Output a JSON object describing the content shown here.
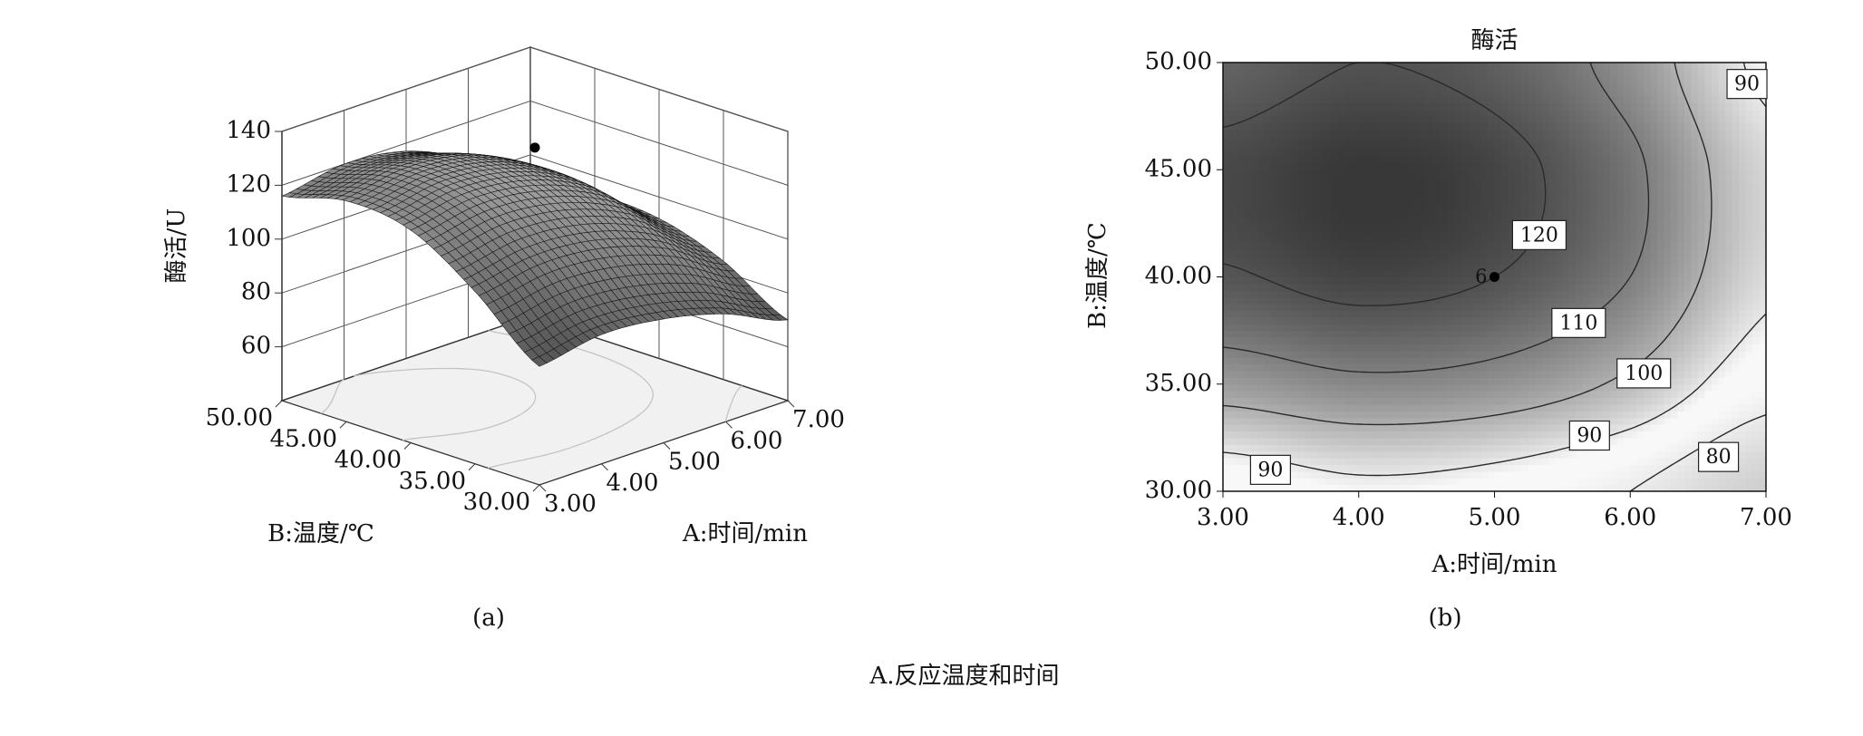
{
  "chart_data": [
    {
      "type": "surface",
      "z_label": "酶活/U",
      "x_label": "A:时间/min",
      "y_label": "B:温度/℃",
      "caption": "(a)",
      "xlim": [
        3,
        7
      ],
      "ylim": [
        30,
        50
      ],
      "zlim": [
        40,
        140
      ],
      "xticks": [
        {
          "value": 3,
          "label": "3.00"
        },
        {
          "value": 4,
          "label": "4.00"
        },
        {
          "value": 5,
          "label": "5.00"
        },
        {
          "value": 6,
          "label": "6.00"
        },
        {
          "value": 7,
          "label": "7.00"
        }
      ],
      "yticks": [
        {
          "value": 30,
          "label": "30.00"
        },
        {
          "value": 35,
          "label": "35.00"
        },
        {
          "value": 40,
          "label": "40.00"
        },
        {
          "value": 45,
          "label": "45.00"
        },
        {
          "value": 50,
          "label": "50.00"
        }
      ],
      "zticks": [
        60,
        80,
        100,
        120,
        140
      ],
      "grid_x": [
        3,
        4,
        5,
        6,
        7
      ],
      "grid_y": [
        30,
        35,
        40,
        45,
        50
      ],
      "z": [
        [
          84,
          88,
          86,
          80,
          70
        ],
        [
          104,
          108,
          106,
          98,
          84
        ],
        [
          119,
          123,
          120,
          110,
          92
        ],
        [
          122,
          126,
          123,
          112,
          93
        ],
        [
          116,
          120,
          117,
          106,
          88
        ]
      ],
      "points": [
        {
          "x": 5,
          "y": 40,
          "z": 134
        }
      ]
    },
    {
      "type": "contour",
      "title": "酶活",
      "x_label": "A:时间/min",
      "y_label": "B:温度/℃",
      "caption": "(b)",
      "xlim": [
        3,
        7
      ],
      "ylim": [
        30,
        50
      ],
      "xticks": [
        {
          "value": 3,
          "label": "3.00"
        },
        {
          "value": 4,
          "label": "4.00"
        },
        {
          "value": 5,
          "label": "5.00"
        },
        {
          "value": 6,
          "label": "6.00"
        },
        {
          "value": 7,
          "label": "7.00"
        }
      ],
      "yticks": [
        {
          "value": 30,
          "label": "30.00"
        },
        {
          "value": 35,
          "label": "35.00"
        },
        {
          "value": 40,
          "label": "40.00"
        },
        {
          "value": 45,
          "label": "45.00"
        },
        {
          "value": 50,
          "label": "50.00"
        }
      ],
      "grid_x": [
        3,
        4,
        5,
        6,
        7
      ],
      "grid_y": [
        30,
        35,
        40,
        45,
        50
      ],
      "z": [
        [
          84,
          88,
          86,
          80,
          70
        ],
        [
          104,
          108,
          106,
          98,
          84
        ],
        [
          119,
          123,
          120,
          110,
          92
        ],
        [
          122,
          126,
          123,
          112,
          93
        ],
        [
          116,
          120,
          117,
          106,
          88
        ]
      ],
      "levels": [
        80,
        90,
        100,
        110,
        120
      ],
      "contour_labels": [
        90,
        120,
        110,
        100,
        90,
        80,
        90
      ],
      "points": [
        {
          "x": 5,
          "y": 40,
          "count": 6
        }
      ]
    }
  ],
  "caption": "A.反应温度和时间"
}
